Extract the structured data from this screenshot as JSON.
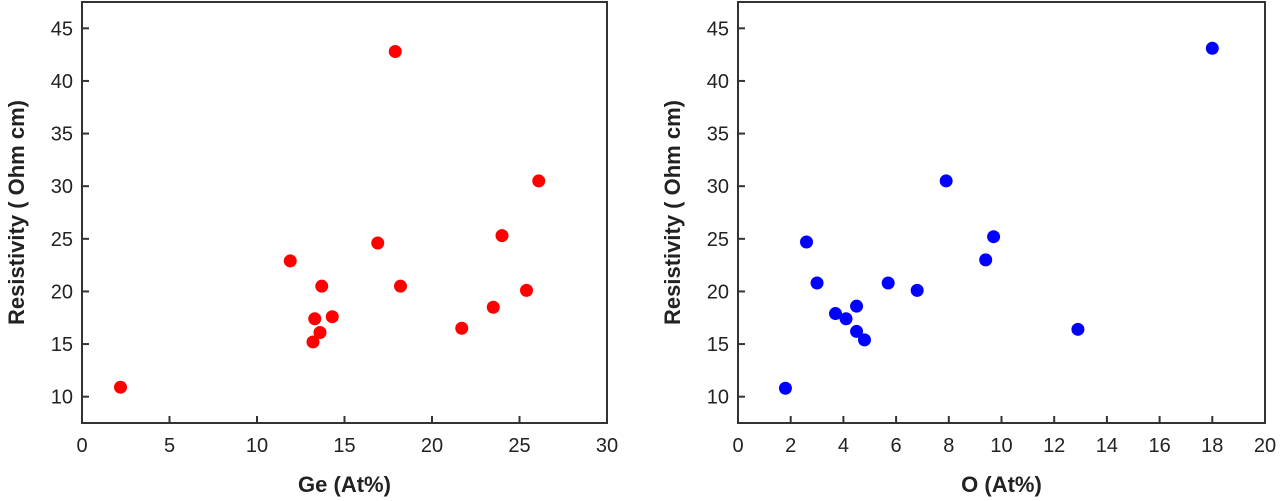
{
  "chart_data": [
    {
      "type": "scatter",
      "title": "",
      "xlabel": "Ge (At%)",
      "ylabel": "Resistivity ( Ohm cm)",
      "xlim": [
        0,
        30
      ],
      "ylim": [
        7.5,
        47.5
      ],
      "xticks": [
        0,
        5,
        10,
        15,
        20,
        25,
        30
      ],
      "yticks": [
        10,
        15,
        20,
        25,
        30,
        35,
        40,
        45
      ],
      "grid": false,
      "marker_color": "#ff0000",
      "points": [
        {
          "x": 2.2,
          "y": 10.9
        },
        {
          "x": 11.9,
          "y": 22.9
        },
        {
          "x": 13.2,
          "y": 15.2
        },
        {
          "x": 13.3,
          "y": 17.4
        },
        {
          "x": 13.6,
          "y": 16.1
        },
        {
          "x": 13.7,
          "y": 20.5
        },
        {
          "x": 14.3,
          "y": 17.6
        },
        {
          "x": 16.9,
          "y": 24.6
        },
        {
          "x": 17.9,
          "y": 42.8
        },
        {
          "x": 18.2,
          "y": 20.5
        },
        {
          "x": 21.7,
          "y": 16.5
        },
        {
          "x": 23.5,
          "y": 18.5
        },
        {
          "x": 24.0,
          "y": 25.3
        },
        {
          "x": 25.4,
          "y": 20.1
        },
        {
          "x": 26.1,
          "y": 30.5
        }
      ]
    },
    {
      "type": "scatter",
      "title": "",
      "xlabel": "O (At%)",
      "ylabel": "Resistivity ( Ohm cm)",
      "xlim": [
        0,
        20
      ],
      "ylim": [
        7.5,
        47.5
      ],
      "xticks": [
        0,
        2,
        4,
        6,
        8,
        10,
        12,
        14,
        16,
        18,
        20
      ],
      "yticks": [
        10,
        15,
        20,
        25,
        30,
        35,
        40,
        45
      ],
      "grid": false,
      "marker_color": "#0000ff",
      "points": [
        {
          "x": 1.8,
          "y": 10.8
        },
        {
          "x": 2.6,
          "y": 24.7
        },
        {
          "x": 3.0,
          "y": 20.8
        },
        {
          "x": 3.7,
          "y": 17.9
        },
        {
          "x": 4.1,
          "y": 17.4
        },
        {
          "x": 4.5,
          "y": 18.6
        },
        {
          "x": 4.5,
          "y": 16.2
        },
        {
          "x": 4.8,
          "y": 15.4
        },
        {
          "x": 5.7,
          "y": 20.8
        },
        {
          "x": 6.8,
          "y": 20.1
        },
        {
          "x": 7.9,
          "y": 30.5
        },
        {
          "x": 9.4,
          "y": 23.0
        },
        {
          "x": 9.7,
          "y": 25.2
        },
        {
          "x": 12.9,
          "y": 16.4
        },
        {
          "x": 18.0,
          "y": 43.1
        }
      ]
    }
  ]
}
